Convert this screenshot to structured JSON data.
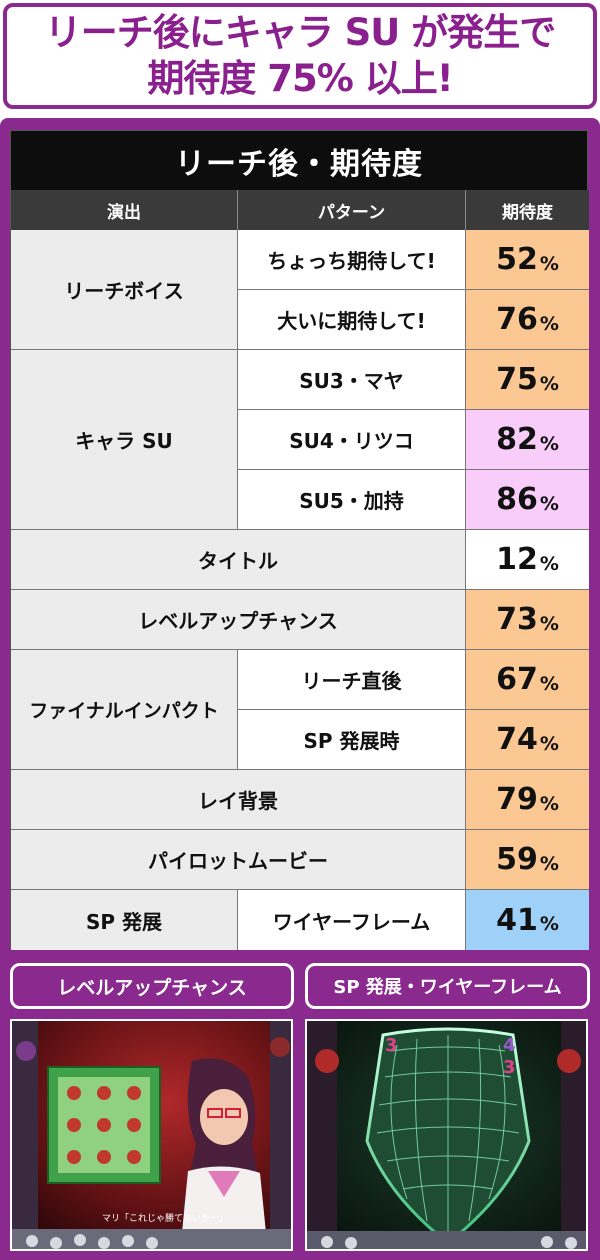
{
  "header": {
    "line1": "リーチ後にキャラ SU が発生で",
    "line2": "期待度 75% 以上!"
  },
  "table": {
    "title": "リーチ後・期待度",
    "columns": [
      "演出",
      "パターン",
      "期待度"
    ],
    "rows": [
      {
        "group": "リーチボイス",
        "pattern": "ちょっち期待して!",
        "value": "52",
        "unit": "%",
        "color": "#fbc894"
      },
      {
        "group": "リーチボイス",
        "pattern": "大いに期待して!",
        "value": "76",
        "unit": "%",
        "color": "#fbc894"
      },
      {
        "group": "キャラ SU",
        "pattern": "SU3・マヤ",
        "value": "75",
        "unit": "%",
        "color": "#fbc894"
      },
      {
        "group": "キャラ SU",
        "pattern": "SU4・リツコ",
        "value": "82",
        "unit": "%",
        "color": "#f9cdf9"
      },
      {
        "group": "キャラ SU",
        "pattern": "SU5・加持",
        "value": "86",
        "unit": "%",
        "color": "#f9cdf9"
      },
      {
        "group": "タイトル",
        "pattern": "",
        "value": "12",
        "unit": "%",
        "color": "#ffffff"
      },
      {
        "group": "レベルアップチャンス",
        "pattern": "",
        "value": "73",
        "unit": "%",
        "color": "#fbc894"
      },
      {
        "group": "ファイナルインパクト",
        "pattern": "リーチ直後",
        "value": "67",
        "unit": "%",
        "color": "#fbc894"
      },
      {
        "group": "ファイナルインパクト",
        "pattern": "SP 発展時",
        "value": "74",
        "unit": "%",
        "color": "#fbc894"
      },
      {
        "group": "レイ背景",
        "pattern": "",
        "value": "79",
        "unit": "%",
        "color": "#fbc894"
      },
      {
        "group": "パイロットムービー",
        "pattern": "",
        "value": "59",
        "unit": "%",
        "color": "#fbc894"
      },
      {
        "group": "SP 発展",
        "pattern": "ワイヤーフレーム",
        "value": "41",
        "unit": "%",
        "color": "#9fd0f7"
      }
    ]
  },
  "captions": {
    "left": "レベルアップチャンス",
    "right": "SP 発展・ワイヤーフレーム"
  },
  "screenshots": {
    "left_subtitle": "マリ「これじゃ勝てないかー」",
    "right_digits": [
      "3",
      "4",
      "3"
    ]
  },
  "colors": {
    "frame": "#8a2a8e",
    "header_text": "#8a1f8e",
    "orange": "#fbc894",
    "pink": "#f9cdf9",
    "blue": "#9fd0f7"
  }
}
